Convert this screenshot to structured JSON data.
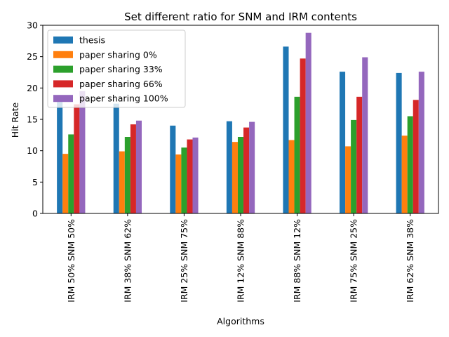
{
  "chart_data": {
    "type": "bar",
    "title": "Set different ratio for SNM and IRM contents",
    "xlabel": "Algorithms",
    "ylabel": "Hit Rate",
    "ylim": [
      0,
      30
    ],
    "yticks": [
      0,
      5,
      10,
      15,
      20,
      25,
      30
    ],
    "grid": false,
    "legend_position": "top-left",
    "categories": [
      "IRM 50% SNM 50%",
      "IRM 38% SNM 62%",
      "IRM 25% SNM 75%",
      "IRM 12% SNM 88%",
      "IRM 88% SNM 12%",
      "IRM 75% SNM 25%",
      "IRM 62% SNM 38%"
    ],
    "series": [
      {
        "name": "thesis",
        "color": "#1f77b4",
        "values": [
          18.0,
          17.5,
          14.0,
          14.7,
          26.6,
          22.6,
          22.4
        ]
      },
      {
        "name": "paper sharing 0%",
        "color": "#ff7f0e",
        "values": [
          9.5,
          9.9,
          9.4,
          11.4,
          11.7,
          10.7,
          12.4
        ]
      },
      {
        "name": "paper sharing 33%",
        "color": "#2ca02c",
        "values": [
          12.6,
          12.2,
          10.5,
          12.2,
          18.6,
          14.9,
          15.5
        ]
      },
      {
        "name": "paper sharing 66%",
        "color": "#d62728",
        "values": [
          17.4,
          14.2,
          11.8,
          13.7,
          24.7,
          18.6,
          18.1
        ]
      },
      {
        "name": "paper sharing 100%",
        "color": "#9467bd",
        "values": [
          19.5,
          14.8,
          12.1,
          14.6,
          28.8,
          24.9,
          22.6
        ]
      }
    ]
  }
}
